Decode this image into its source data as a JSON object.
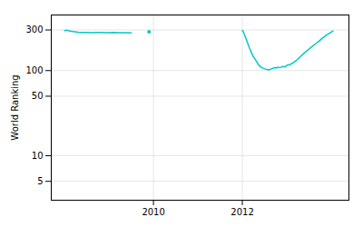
{
  "chart_data": {
    "type": "line",
    "ylabel": "World Ranking",
    "log": "y",
    "grid": true,
    "xlim": [
      2007.7,
      2014.4
    ],
    "xticks": [
      2010,
      2012
    ],
    "ylim": [
      3,
      450
    ],
    "yticks": [
      5,
      10,
      50,
      100,
      300
    ],
    "series": [
      {
        "color": "#00c8c8",
        "x": [
          2008.0,
          2008.05,
          2008.1,
          2008.15,
          2008.2,
          2008.3,
          2008.4,
          2008.5,
          2008.6,
          2008.7,
          2008.8,
          2008.9,
          2009.0,
          2009.1,
          2009.2,
          2009.3,
          2009.4,
          2009.5
        ],
        "values": [
          295,
          298,
          293,
          290,
          287,
          283,
          281,
          280,
          279,
          281,
          280,
          279,
          278,
          280,
          278,
          279,
          278,
          277
        ]
      },
      {
        "color": "#00c8c8",
        "marker": "dot",
        "x": [
          2009.9
        ],
        "values": [
          285
        ]
      },
      {
        "color": "#00c8c8",
        "x": [
          2012.0,
          2012.02,
          2012.04,
          2012.08,
          2012.12,
          2012.16,
          2012.2,
          2012.24,
          2012.28,
          2012.32,
          2012.36,
          2012.4,
          2012.44,
          2012.48,
          2012.52,
          2012.56,
          2012.6,
          2012.64,
          2012.68,
          2012.72,
          2012.76,
          2012.8,
          2012.84,
          2012.88,
          2012.92,
          2012.96,
          2013.0,
          2013.08,
          2013.16,
          2013.24,
          2013.32,
          2013.4,
          2013.48,
          2013.56,
          2013.64,
          2013.72,
          2013.8,
          2013.88,
          2013.96,
          2014.04
        ],
        "values": [
          295,
          290,
          270,
          240,
          210,
          185,
          165,
          148,
          138,
          128,
          118,
          112,
          108,
          106,
          104,
          103,
          102,
          104,
          106,
          108,
          107,
          110,
          108,
          110,
          112,
          110,
          115,
          118,
          125,
          135,
          148,
          162,
          175,
          190,
          205,
          220,
          240,
          258,
          275,
          292
        ]
      }
    ]
  }
}
